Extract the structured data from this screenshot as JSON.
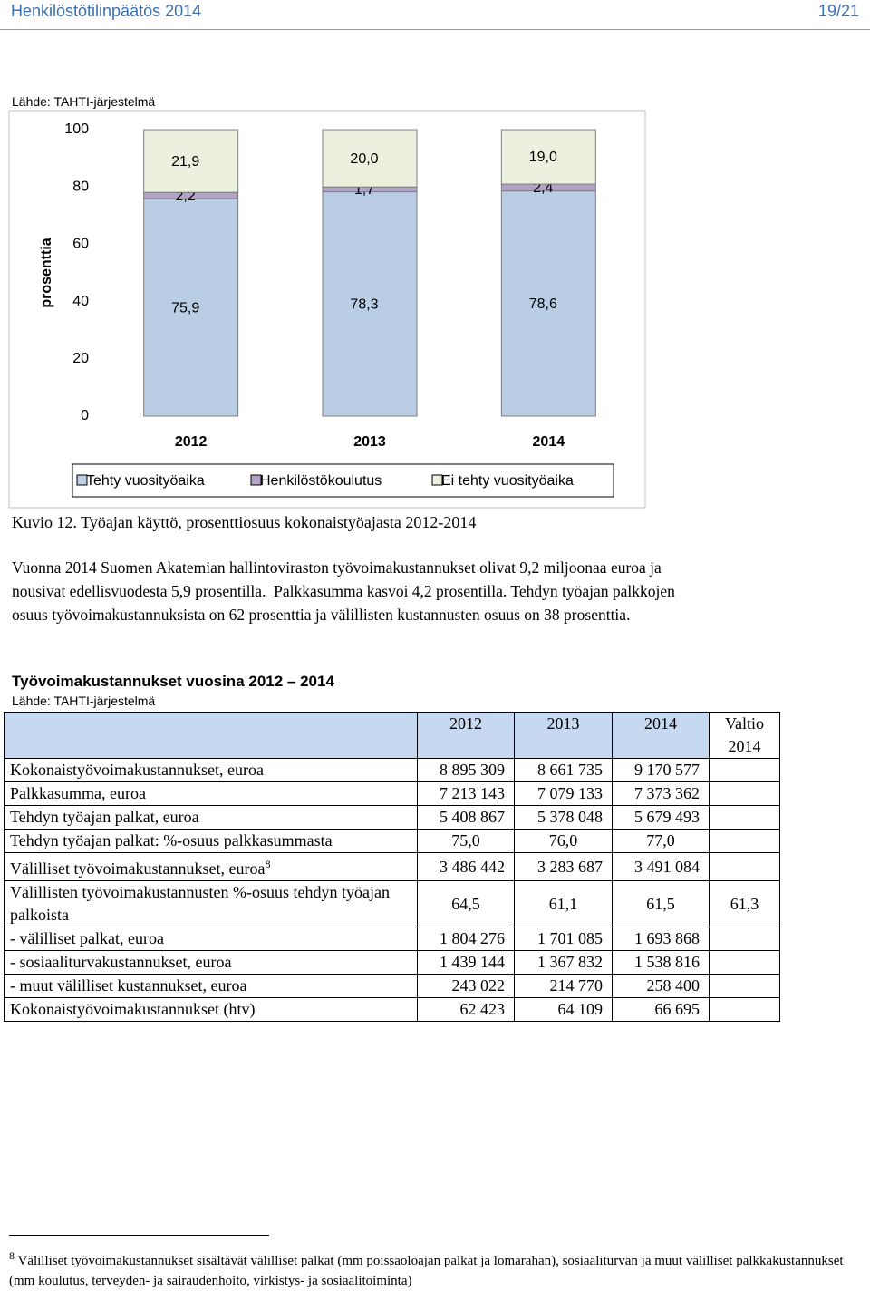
{
  "header": {
    "title": "Henkilöstötilinpäätös 2014",
    "page": "19/21"
  },
  "chart_source": "Lähde: TAHTI-järjestelmä",
  "chart_data": {
    "type": "bar",
    "stacked": true,
    "ylabel": "prosenttia",
    "categories": [
      "2012",
      "2013",
      "2014"
    ],
    "series": [
      {
        "name": "Tehty vuosityöaika",
        "color": "#b9cde5",
        "values": [
          75.9,
          78.3,
          78.6
        ],
        "value_labels": [
          "75,9",
          "78,3",
          "78,6"
        ]
      },
      {
        "name": "Henkilöstökoulutus",
        "color": "#b3a2c7",
        "values": [
          2.2,
          1.7,
          2.4
        ],
        "value_labels": [
          "2,2",
          "1,7",
          "2,4"
        ]
      },
      {
        "name": "Ei tehty vuosityöaika",
        "color": "#ebf1de",
        "values": [
          21.9,
          20.0,
          19.0
        ],
        "value_labels": [
          "21,9",
          "20,0",
          "19,0"
        ]
      }
    ],
    "ylim": [
      0,
      100
    ],
    "yticks": [
      0,
      20,
      40,
      60,
      80,
      100
    ],
    "legend": "bottom"
  },
  "caption": "Kuvio 12. Työajan käyttö, prosenttiosuus kokonaistyöajasta 2012-2014",
  "paragraph": [
    "Vuonna 2014 Suomen Akatemian hallintoviraston työvoimakustannukset olivat 9,2 miljoonaa euroa ja",
    "nousivat edellisvuodesta 5,9 prosentilla.  Palkkasumma kasvoi 4,2 prosentilla. Tehdyn työajan palkkojen",
    "osuus työvoimakustannuksista on 62 prosenttia ja välillisten kustannusten osuus on 38 prosenttia."
  ],
  "table": {
    "title": "Työvoimakustannukset vuosina 2012 – 2014",
    "source": "Lähde: TAHTI-järjestelmä",
    "columns": [
      "2012",
      "2013",
      "2014",
      "Valtio 2014"
    ],
    "rows": [
      [
        "Kokonaistyövoimakustannukset, euroa",
        "8 895 309",
        "8 661 735",
        "9 170 577"
      ],
      [
        "Palkkasumma, euroa",
        "7 213 143",
        "7 079 133",
        "7 373 362"
      ],
      [
        "Tehdyn työajan palkat, euroa",
        "5 408 867",
        "5 378 048",
        "5 679 493"
      ],
      [
        "Tehdyn työajan palkat: %-osuus palkkasummasta",
        "75,0",
        "76,0",
        "77,0"
      ],
      [
        "Välilliset työvoimakustannukset, euroa",
        "3 486 442",
        "3 283 687",
        "3 491 084"
      ],
      [
        "Välillisten työvoimakustannusten %-osuus tehdyn työajan palkoista",
        "64,5",
        "61,1",
        "61,5",
        "61,3"
      ],
      [
        "- välilliset palkat, euroa",
        "1 804 276",
        "1 701 085",
        "1 693 868"
      ],
      [
        "- sosiaaliturvakustannukset, euroa",
        "1 439 144",
        "1 367 832",
        "1 538 816"
      ],
      [
        "- muut välilliset kustannukset, euroa",
        "243 022",
        "214 770",
        "258 400"
      ],
      [
        "Kokonaistyövoimakustannukset (htv)",
        "62 423",
        "64 109",
        "66 695"
      ]
    ]
  },
  "footnote": {
    "mark": "8",
    "text": "Välilliset työvoimakustannukset sisältävät välilliset palkat (mm poissaoloajan palkat ja lomarahan), sosiaaliturvan ja muut välilliset palkkakustannukset (mm koulutus, terveyden- ja sairaudenhoito, virkistys- ja sosiaalitoiminta)"
  }
}
